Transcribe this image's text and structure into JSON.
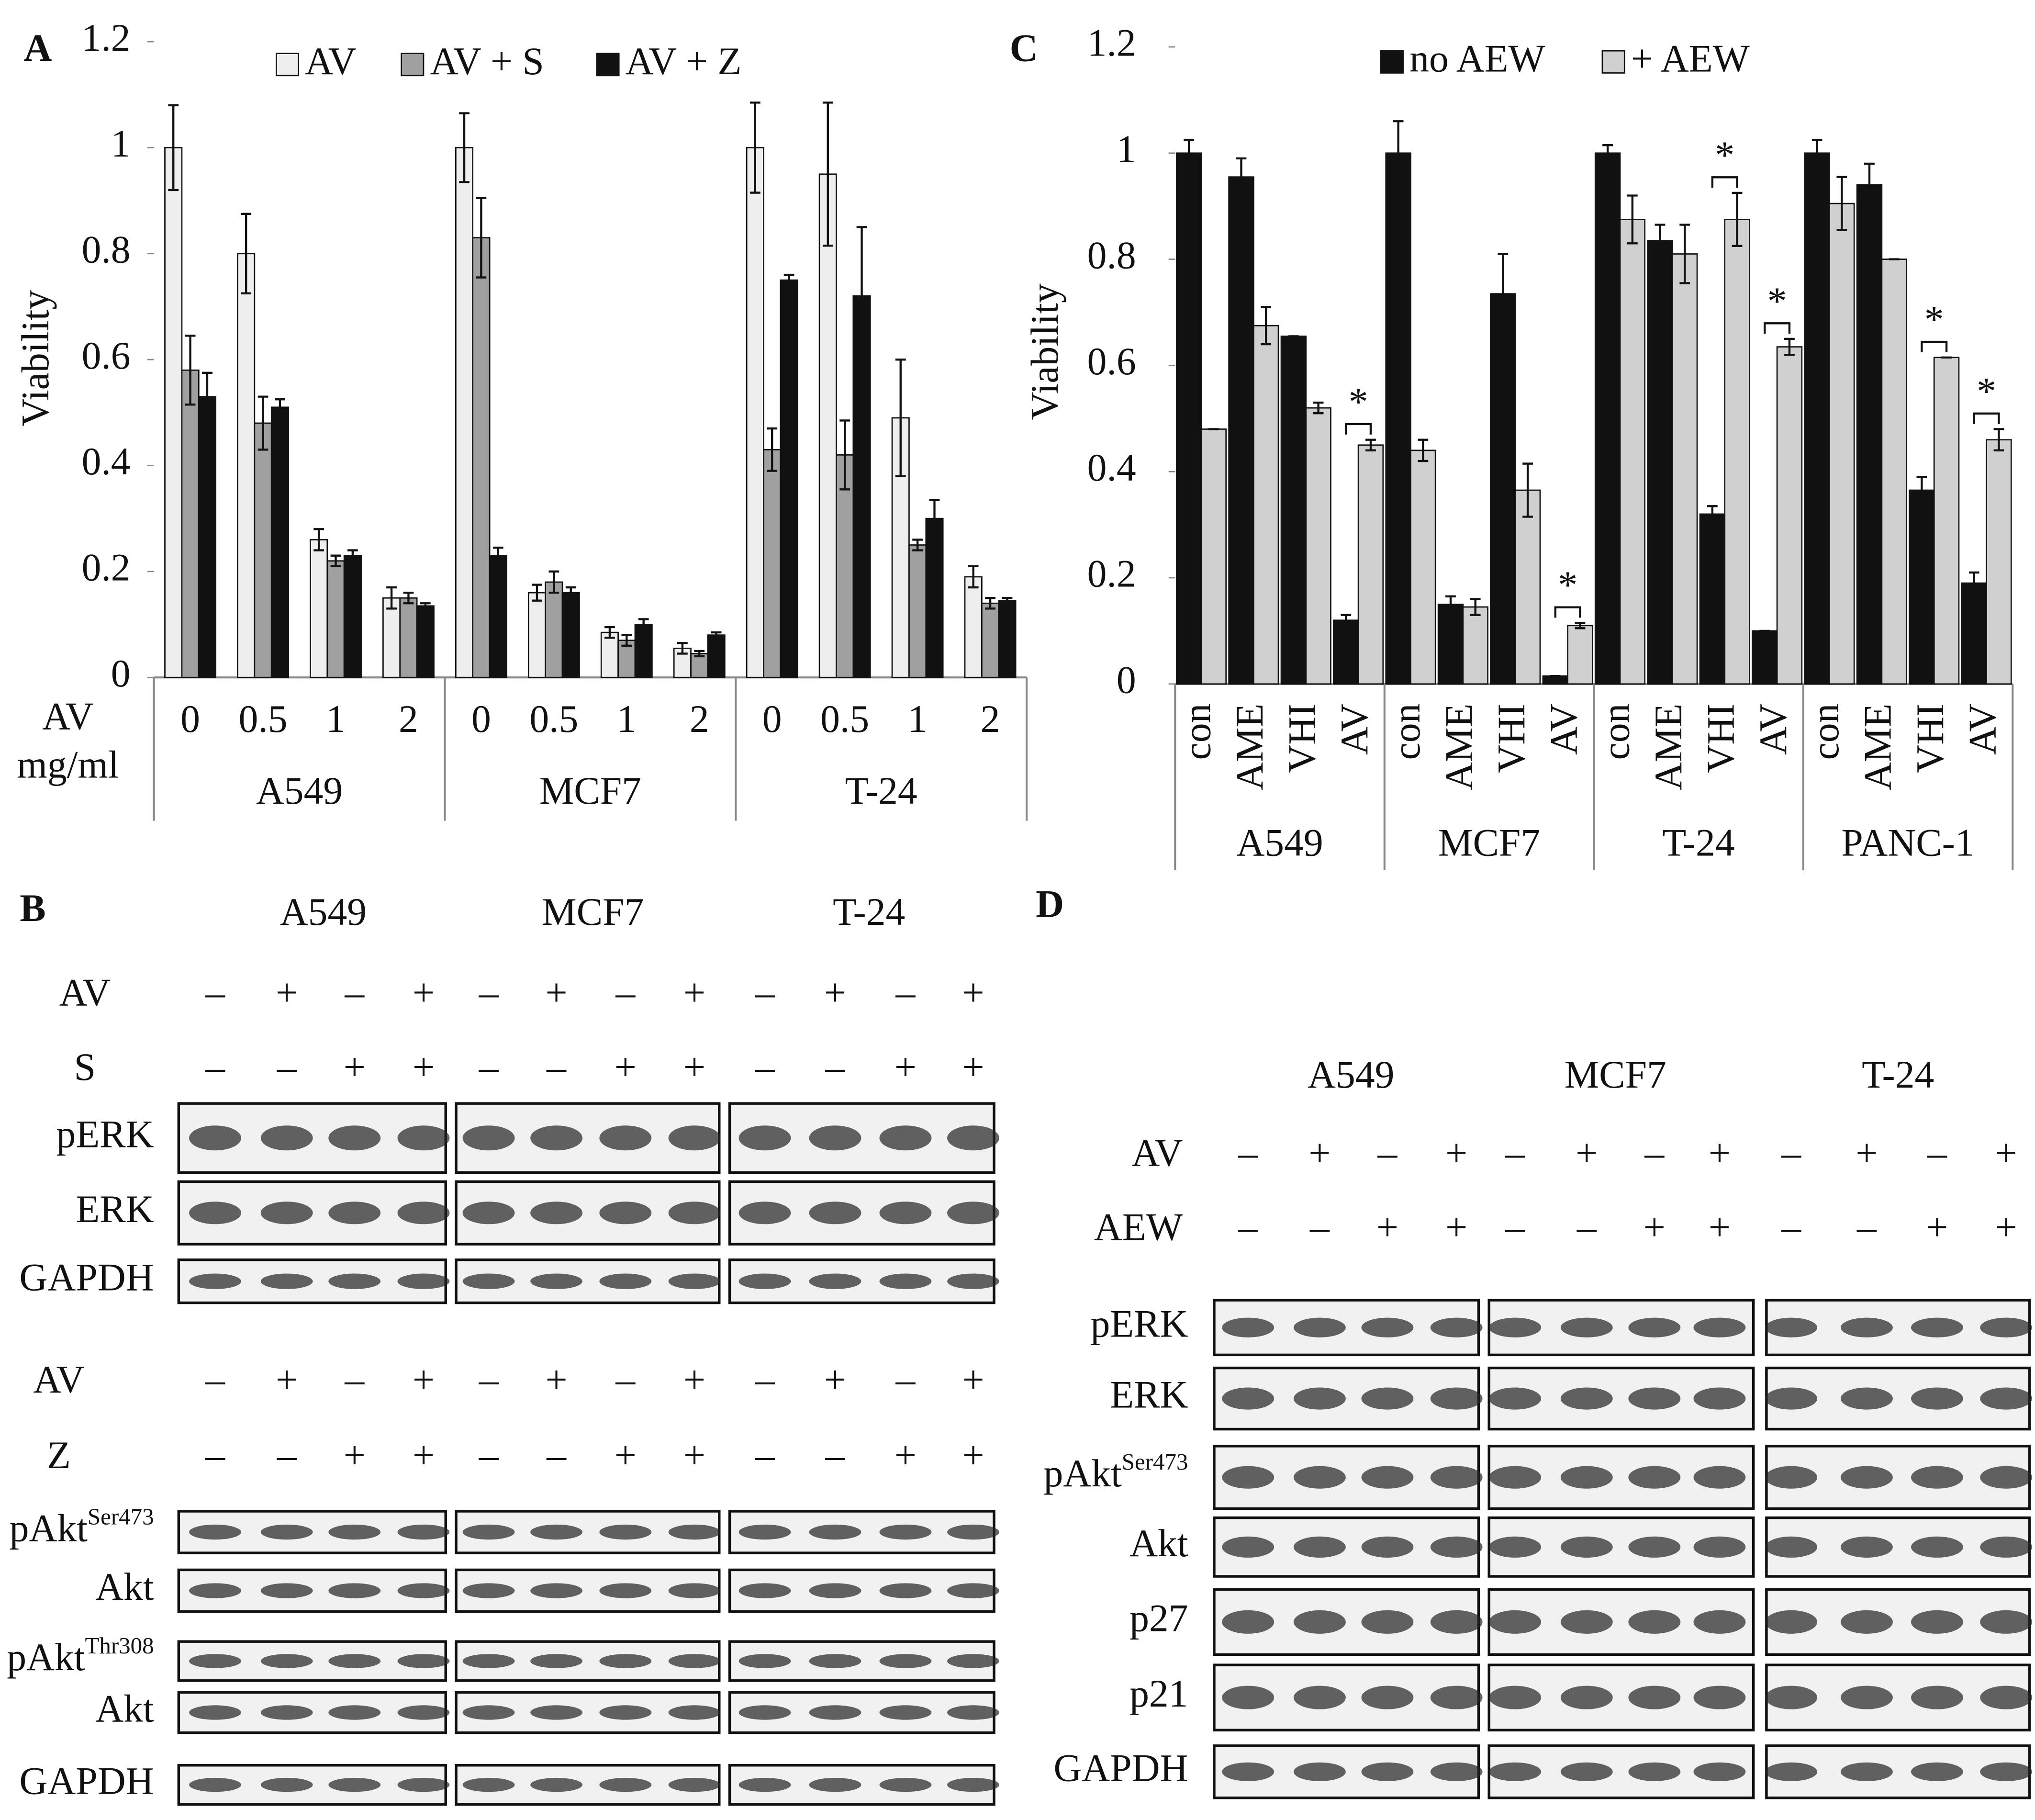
{
  "chart_data": [
    {
      "type": "bar",
      "panel": "A",
      "ylabel": "Viability",
      "xlabel_lines": [
        "AV",
        "mg/ml"
      ],
      "ylim": [
        0,
        1.2
      ],
      "yticks": [
        0,
        0.2,
        0.4,
        0.6,
        0.8,
        1,
        1.2
      ],
      "groups": [
        "A549",
        "MCF7",
        "T-24"
      ],
      "categories": [
        "0",
        "0.5",
        "1",
        "2",
        "0",
        "0.5",
        "1",
        "2",
        "0",
        "0.5",
        "1",
        "2"
      ],
      "series": [
        {
          "name": "AV",
          "color": "#eeeeee",
          "values": [
            1.0,
            0.8,
            0.26,
            0.15,
            1.0,
            0.16,
            0.085,
            0.055,
            1.0,
            0.95,
            0.49,
            0.19
          ],
          "errors": [
            0.08,
            0.075,
            0.02,
            0.02,
            0.065,
            0.015,
            0.01,
            0.01,
            0.085,
            0.135,
            0.11,
            0.02
          ]
        },
        {
          "name": "AV + S",
          "color": "#a0a0a0",
          "values": [
            0.58,
            0.48,
            0.22,
            0.15,
            0.83,
            0.18,
            0.07,
            0.045,
            0.43,
            0.42,
            0.25,
            0.14
          ],
          "errors": [
            0.065,
            0.05,
            0.01,
            0.01,
            0.075,
            0.02,
            0.01,
            0.005,
            0.04,
            0.065,
            0.01,
            0.01
          ]
        },
        {
          "name": "AV + Z",
          "color": "#111111",
          "values": [
            0.53,
            0.51,
            0.23,
            0.135,
            0.23,
            0.16,
            0.1,
            0.08,
            0.75,
            0.72,
            0.3,
            0.145
          ],
          "errors": [
            0.045,
            0.015,
            0.01,
            0.005,
            0.015,
            0.01,
            0.01,
            0.005,
            0.01,
            0.13,
            0.035,
            0.005
          ]
        }
      ]
    },
    {
      "type": "bar",
      "panel": "C",
      "ylabel": "Viability",
      "ylim": [
        0,
        1.2
      ],
      "yticks": [
        0,
        0.2,
        0.4,
        0.6,
        0.8,
        1,
        1.2
      ],
      "groups": [
        "A549",
        "MCF7",
        "T-24",
        "PANC-1"
      ],
      "categories": [
        "con",
        "AME",
        "VHI",
        "AV",
        "con",
        "AME",
        "VHI",
        "AV",
        "con",
        "AME",
        "VHI",
        "AV",
        "con",
        "AME",
        "VHI",
        "AV"
      ],
      "series": [
        {
          "name": "no AEW",
          "color": "#111111",
          "values": [
            1.0,
            0.955,
            0.655,
            0.12,
            1.0,
            0.15,
            0.735,
            0.015,
            1.0,
            0.835,
            0.32,
            0.1,
            1.0,
            0.94,
            0.365,
            0.19
          ],
          "errors": [
            0.025,
            0.035,
            0,
            0.01,
            0.06,
            0.015,
            0.075,
            0,
            0.015,
            0.03,
            0.015,
            0,
            0.025,
            0.04,
            0.025,
            0.02
          ]
        },
        {
          "name": "+ AEW",
          "color": "#d0d0d0",
          "values": [
            0.48,
            0.675,
            0.52,
            0.45,
            0.44,
            0.145,
            0.365,
            0.11,
            0.875,
            0.81,
            0.875,
            0.635,
            0.905,
            0.8,
            0.615,
            0.46
          ],
          "errors": [
            0,
            0.035,
            0.01,
            0.01,
            0.02,
            0.015,
            0.05,
            0.005,
            0.045,
            0.055,
            0.05,
            0.015,
            0.05,
            0,
            0,
            0.02
          ]
        }
      ],
      "annotations": [
        {
          "text": "*",
          "group": "A549",
          "category": "AV"
        },
        {
          "text": "*",
          "group": "MCF7",
          "category": "AV"
        },
        {
          "text": "*",
          "group": "T-24",
          "category": "VHI"
        },
        {
          "text": "*",
          "group": "T-24",
          "category": "AV"
        },
        {
          "text": "*",
          "group": "PANC-1",
          "category": "VHI"
        },
        {
          "text": "*",
          "group": "PANC-1",
          "category": "AV"
        }
      ]
    }
  ],
  "blots": [
    {
      "panel": "B",
      "cell_lines": [
        "A549",
        "MCF7",
        "T-24"
      ],
      "sections": [
        {
          "treatments": [
            {
              "label": "AV",
              "signs": [
                "–",
                "+",
                "–",
                "+",
                "–",
                "+",
                "–",
                "+",
                "–",
                "+",
                "–",
                "+"
              ]
            },
            {
              "label": "S",
              "signs": [
                "–",
                "–",
                "+",
                "+",
                "–",
                "–",
                "+",
                "+",
                "–",
                "–",
                "+",
                "+"
              ]
            }
          ],
          "rows": [
            {
              "label": "pERK"
            },
            {
              "label": "ERK"
            },
            {
              "label": "GAPDH"
            }
          ]
        },
        {
          "treatments": [
            {
              "label": "AV",
              "signs": [
                "–",
                "+",
                "–",
                "+",
                "–",
                "+",
                "–",
                "+",
                "–",
                "+",
                "–",
                "+"
              ]
            },
            {
              "label": "Z",
              "signs": [
                "–",
                "–",
                "+",
                "+",
                "–",
                "–",
                "+",
                "+",
                "–",
                "–",
                "+",
                "+"
              ]
            }
          ],
          "rows": [
            {
              "label": "pAkt",
              "sup": "Ser473"
            },
            {
              "label": "Akt"
            },
            {
              "label": "pAkt",
              "sup": "Thr308"
            },
            {
              "label": "Akt"
            },
            {
              "label": "GAPDH"
            }
          ]
        }
      ]
    },
    {
      "panel": "D",
      "cell_lines": [
        "A549",
        "MCF7",
        "T-24"
      ],
      "sections": [
        {
          "treatments": [
            {
              "label": "AV",
              "signs": [
                "–",
                "+",
                "–",
                "+",
                "–",
                "+",
                "–",
                "+",
                "–",
                "+",
                "–",
                "+"
              ]
            },
            {
              "label": "AEW",
              "signs": [
                "–",
                "–",
                "+",
                "+",
                "–",
                "–",
                "+",
                "+",
                "–",
                "–",
                "+",
                "+"
              ]
            }
          ],
          "rows": [
            {
              "label": "pERK"
            },
            {
              "label": "ERK"
            },
            {
              "label": "pAkt",
              "sup": "Ser473"
            },
            {
              "label": "Akt"
            },
            {
              "label": "p27"
            },
            {
              "label": "p21"
            },
            {
              "label": "GAPDH"
            }
          ]
        }
      ]
    }
  ]
}
